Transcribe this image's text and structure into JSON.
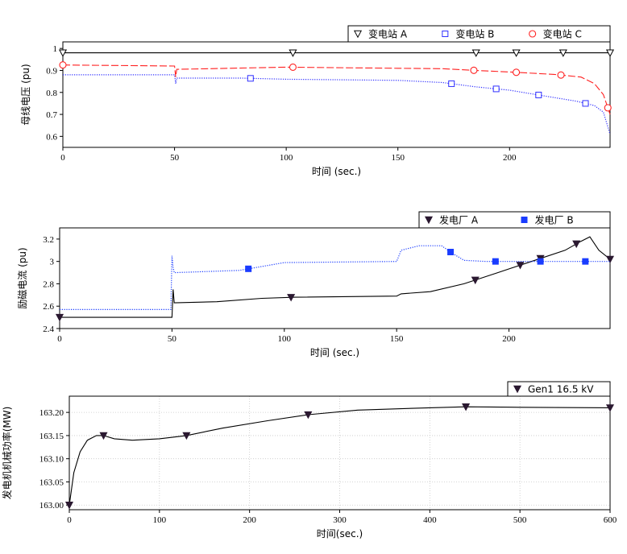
{
  "chart_data": [
    {
      "type": "line",
      "xlabel": "时间 (sec.)",
      "ylabel": "母线电压 (pu)",
      "xlim": [
        0,
        245
      ],
      "ylim": [
        0.55,
        1.03
      ],
      "xticks": [
        0,
        50,
        100,
        150,
        200
      ],
      "yticks": [
        0.6,
        0.7,
        0.8,
        0.9,
        1
      ],
      "ytick_labels": [
        "0.6",
        "0.7",
        "0.8",
        "0.9",
        "1"
      ],
      "grid": false,
      "legend_position": "top-right",
      "series": [
        {
          "name": "变电站 A",
          "color": "#000000",
          "marker": "triangle-down-open",
          "line": "solid",
          "x": [
            0,
            50,
            100,
            150,
            200,
            245
          ],
          "y": [
            0.98,
            0.98,
            0.98,
            0.98,
            0.98,
            0.98
          ],
          "marker_x": [
            0,
            103,
            185,
            203,
            224,
            245
          ]
        },
        {
          "name": "变电站 B",
          "color": "#3030ff",
          "marker": "square-open",
          "line": "dotted",
          "x": [
            0,
            50,
            50.5,
            51,
            80,
            100,
            150,
            170,
            185,
            200,
            215,
            230,
            238,
            242,
            245
          ],
          "y": [
            0.88,
            0.88,
            0.84,
            0.865,
            0.865,
            0.86,
            0.855,
            0.845,
            0.825,
            0.81,
            0.785,
            0.76,
            0.74,
            0.71,
            0.61
          ],
          "marker_x": [
            84,
            174,
            194,
            213,
            234
          ]
        },
        {
          "name": "变电站 C",
          "color": "#ff2020",
          "marker": "circle-open",
          "line": "dashed",
          "x": [
            0,
            50,
            50.5,
            51,
            100,
            150,
            170,
            185,
            200,
            220,
            232,
            238,
            242,
            245
          ],
          "y": [
            0.925,
            0.92,
            0.87,
            0.905,
            0.915,
            0.91,
            0.908,
            0.9,
            0.893,
            0.882,
            0.87,
            0.84,
            0.79,
            0.7
          ],
          "marker_x": [
            0,
            103,
            184,
            203,
            223,
            244
          ]
        }
      ]
    },
    {
      "type": "line",
      "xlabel": "时间 (sec.)",
      "ylabel": "励磁电流 (pu)",
      "xlim": [
        0,
        245
      ],
      "ylim": [
        2.4,
        3.3
      ],
      "xticks": [
        0,
        50,
        100,
        150,
        200
      ],
      "yticks": [
        2.4,
        2.6,
        2.8,
        3,
        3.2
      ],
      "ytick_labels": [
        "2.4",
        "2.6",
        "2.8",
        "3",
        "3.2"
      ],
      "grid": false,
      "legend_position": "top-right",
      "series": [
        {
          "name": "发电厂 A",
          "color": "#000000",
          "marker": "triangle-down-filled",
          "line": "solid",
          "x": [
            0,
            50,
            50.5,
            51,
            70,
            90,
            105,
            150,
            152,
            165,
            180,
            195,
            210,
            225,
            232,
            236,
            240,
            245
          ],
          "y": [
            2.5,
            2.5,
            2.75,
            2.63,
            2.64,
            2.67,
            2.68,
            2.69,
            2.71,
            2.73,
            2.8,
            2.9,
            3.0,
            3.1,
            3.18,
            3.22,
            3.1,
            3.02
          ],
          "marker_x": [
            0,
            103,
            185,
            205,
            214,
            230,
            245
          ]
        },
        {
          "name": "发电厂 B",
          "color": "#1a3cff",
          "marker": "square-filled",
          "line": "dotted",
          "x": [
            0,
            49.5,
            50,
            50.5,
            51,
            80,
            100,
            150,
            152,
            160,
            170,
            175,
            180,
            190,
            245
          ],
          "y": [
            2.57,
            2.57,
            3.05,
            2.95,
            2.9,
            2.92,
            2.99,
            3.0,
            3.1,
            3.14,
            3.14,
            3.07,
            3.01,
            3.0,
            3.0
          ],
          "marker_x": [
            84,
            174,
            194,
            214,
            234
          ]
        }
      ]
    },
    {
      "type": "line",
      "xlabel": "时间(sec.)",
      "ylabel": "发电机机械功率(MW)",
      "xlim": [
        0,
        600
      ],
      "ylim": [
        162.99,
        163.235
      ],
      "xticks": [
        0,
        100,
        200,
        300,
        400,
        500,
        600
      ],
      "yticks": [
        163.0,
        163.05,
        163.1,
        163.15,
        163.2
      ],
      "ytick_labels": [
        "163.00",
        "163.05",
        "163.10",
        "163.15",
        "163.20"
      ],
      "grid": true,
      "legend_position": "top-right",
      "series": [
        {
          "name": "Gen1 16.5 kV",
          "color": "#000000",
          "marker": "triangle-down-filled",
          "line": "solid",
          "x": [
            0,
            5,
            12,
            20,
            30,
            38,
            50,
            70,
            100,
            130,
            170,
            220,
            265,
            320,
            400,
            440,
            500,
            600
          ],
          "y": [
            163.0,
            163.07,
            163.115,
            163.14,
            163.15,
            163.15,
            163.143,
            163.14,
            163.143,
            163.15,
            163.166,
            163.182,
            163.195,
            163.205,
            163.21,
            163.212,
            163.211,
            163.21
          ],
          "marker_x": [
            0,
            38,
            130,
            265,
            440,
            600
          ]
        }
      ]
    }
  ]
}
